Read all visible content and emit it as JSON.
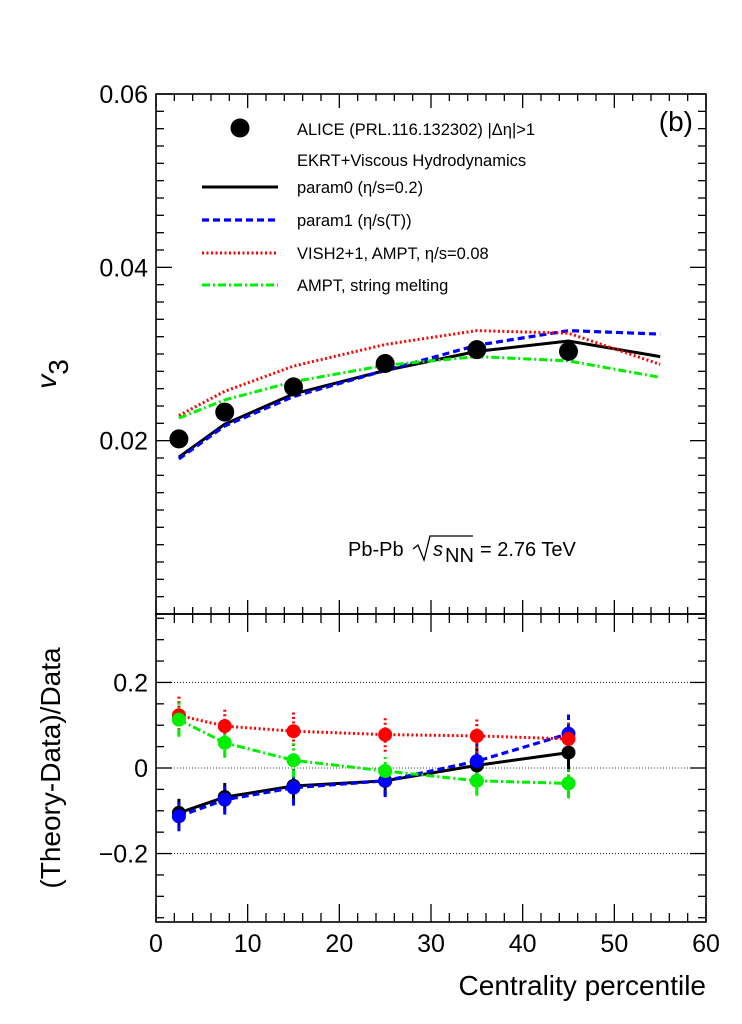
{
  "chart_data": [
    {
      "type": "scatter",
      "panel": "top",
      "panel_label": "(b)",
      "ylabel": "v",
      "ylabel_sub": "3",
      "xlim": [
        0,
        60
      ],
      "ylim": [
        0,
        0.06
      ],
      "y_ticks": [
        0.02,
        0.04,
        0.06
      ],
      "y_tick_labels": [
        "0.02",
        "0.04",
        "0.06"
      ],
      "legend_header": "EKRT+Viscous Hydrodynamics",
      "annotation": {
        "prefix": "Pb-Pb",
        "sqrt_var": "s",
        "sqrt_sub": "NN",
        "suffix": "= 2.76 TeV"
      },
      "data_series": {
        "name": "ALICE (PRL.116.132302) |Δη|>1",
        "color": "#000000",
        "x": [
          2.5,
          7.5,
          15,
          25,
          35,
          45
        ],
        "y": [
          0.0202,
          0.0233,
          0.0262,
          0.0289,
          0.0305,
          0.0303
        ]
      },
      "series": [
        {
          "name": "param0 (η/s=0.2)",
          "color": "#000000",
          "style": "solid",
          "x": [
            2.5,
            7.5,
            15,
            25,
            35,
            45,
            55
          ],
          "y": [
            0.0181,
            0.0219,
            0.0254,
            0.0281,
            0.0303,
            0.0315,
            0.0297
          ]
        },
        {
          "name": "param1 (η/s(T))",
          "color": "#0000ff",
          "style": "dashed",
          "x": [
            2.5,
            7.5,
            15,
            25,
            35,
            45,
            55
          ],
          "y": [
            0.0179,
            0.0217,
            0.0251,
            0.0281,
            0.031,
            0.0327,
            0.0323
          ]
        },
        {
          "name": "VISH2+1, AMPT, η/s=0.08",
          "color": "#ff0000",
          "style": "dotted",
          "x": [
            2.5,
            7.5,
            15,
            25,
            35,
            45,
            55
          ],
          "y": [
            0.0229,
            0.0257,
            0.0286,
            0.0311,
            0.0327,
            0.0324,
            0.0288
          ]
        },
        {
          "name": "AMPT, string melting",
          "color": "#00ee00",
          "style": "dashdot",
          "x": [
            2.5,
            7.5,
            15,
            25,
            35,
            45,
            55
          ],
          "y": [
            0.0226,
            0.0247,
            0.0268,
            0.0287,
            0.0297,
            0.0292,
            0.0273
          ]
        }
      ]
    },
    {
      "type": "scatter",
      "panel": "bottom",
      "ylabel": "(Theory-Data)/Data",
      "xlabel": "Centrality percentile",
      "xlim": [
        0,
        60
      ],
      "ylim": [
        -0.36,
        0.36
      ],
      "x_ticks": [
        0,
        10,
        20,
        30,
        40,
        50,
        60
      ],
      "x_tick_labels": [
        "0",
        "10",
        "20",
        "30",
        "40",
        "50",
        "60"
      ],
      "y_ticks": [
        -0.2,
        0,
        0.2
      ],
      "y_tick_labels": [
        "−0.2",
        "0",
        "0.2"
      ],
      "gridlines_y": [
        -0.2,
        0,
        0.2
      ],
      "series": [
        {
          "name": "param0 (η/s=0.2)",
          "color": "#000000",
          "style": "solid",
          "x": [
            2.5,
            7.5,
            15,
            25,
            35,
            45
          ],
          "y": [
            -0.105,
            -0.068,
            -0.042,
            -0.03,
            0.006,
            0.036
          ],
          "err": [
            0.033,
            0.033,
            0.04,
            0.035,
            0.04,
            0.045
          ]
        },
        {
          "name": "param1 (η/s(T))",
          "color": "#0000ff",
          "style": "dashed",
          "x": [
            2.5,
            7.5,
            15,
            25,
            35,
            45
          ],
          "y": [
            -0.113,
            -0.074,
            -0.046,
            -0.03,
            0.016,
            0.08
          ],
          "err": [
            0.035,
            0.035,
            0.042,
            0.038,
            0.043,
            0.045
          ]
        },
        {
          "name": "VISH2+1, AMPT, η/s=0.08",
          "color": "#ff0000",
          "style": "dotted",
          "x": [
            2.5,
            7.5,
            15,
            25,
            35,
            45
          ],
          "y": [
            0.123,
            0.098,
            0.086,
            0.078,
            0.075,
            0.068
          ],
          "err": [
            0.045,
            0.04,
            0.045,
            0.04,
            0.04,
            0.04
          ]
        },
        {
          "name": "AMPT, string melting",
          "color": "#00ee00",
          "style": "dashdot",
          "x": [
            2.5,
            7.5,
            15,
            25,
            35,
            45
          ],
          "y": [
            0.113,
            0.059,
            0.018,
            -0.007,
            -0.03,
            -0.036
          ],
          "err": [
            0.04,
            0.035,
            0.04,
            0.035,
            0.035,
            0.035
          ]
        }
      ]
    }
  ]
}
